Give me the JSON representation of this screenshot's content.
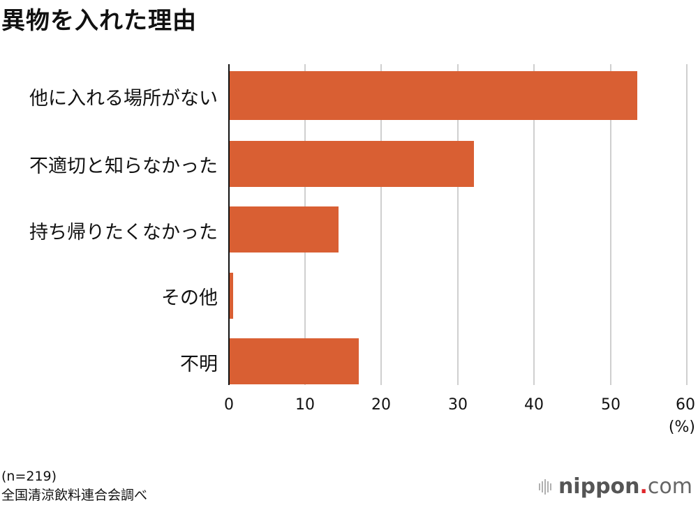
{
  "title": "異物を入れた理由",
  "chart_data": {
    "type": "bar",
    "orientation": "horizontal",
    "title": "異物を入れた理由",
    "categories": [
      "他に入れる場所がない",
      "不適切と知らなかった",
      "持ち帰りたくなかった",
      "その他",
      "不明"
    ],
    "values": [
      53.4,
      32.0,
      14.3,
      0.5,
      16.9
    ],
    "xlabel": "(%)",
    "ylabel": "",
    "xlim": [
      0,
      60
    ],
    "xticks": [
      0,
      10,
      20,
      30,
      40,
      50,
      60
    ],
    "grid": true,
    "legend": null,
    "bar_color": "#d95f33"
  },
  "axis": {
    "ticks": [
      "0",
      "10",
      "20",
      "30",
      "40",
      "50",
      "60"
    ],
    "unit": "(%)"
  },
  "footer": {
    "sample": "(n=219)",
    "source": "全国清涼飲料連合会調べ"
  },
  "logo": {
    "brand": "nippon",
    "dot": ".",
    "tld": "com"
  }
}
